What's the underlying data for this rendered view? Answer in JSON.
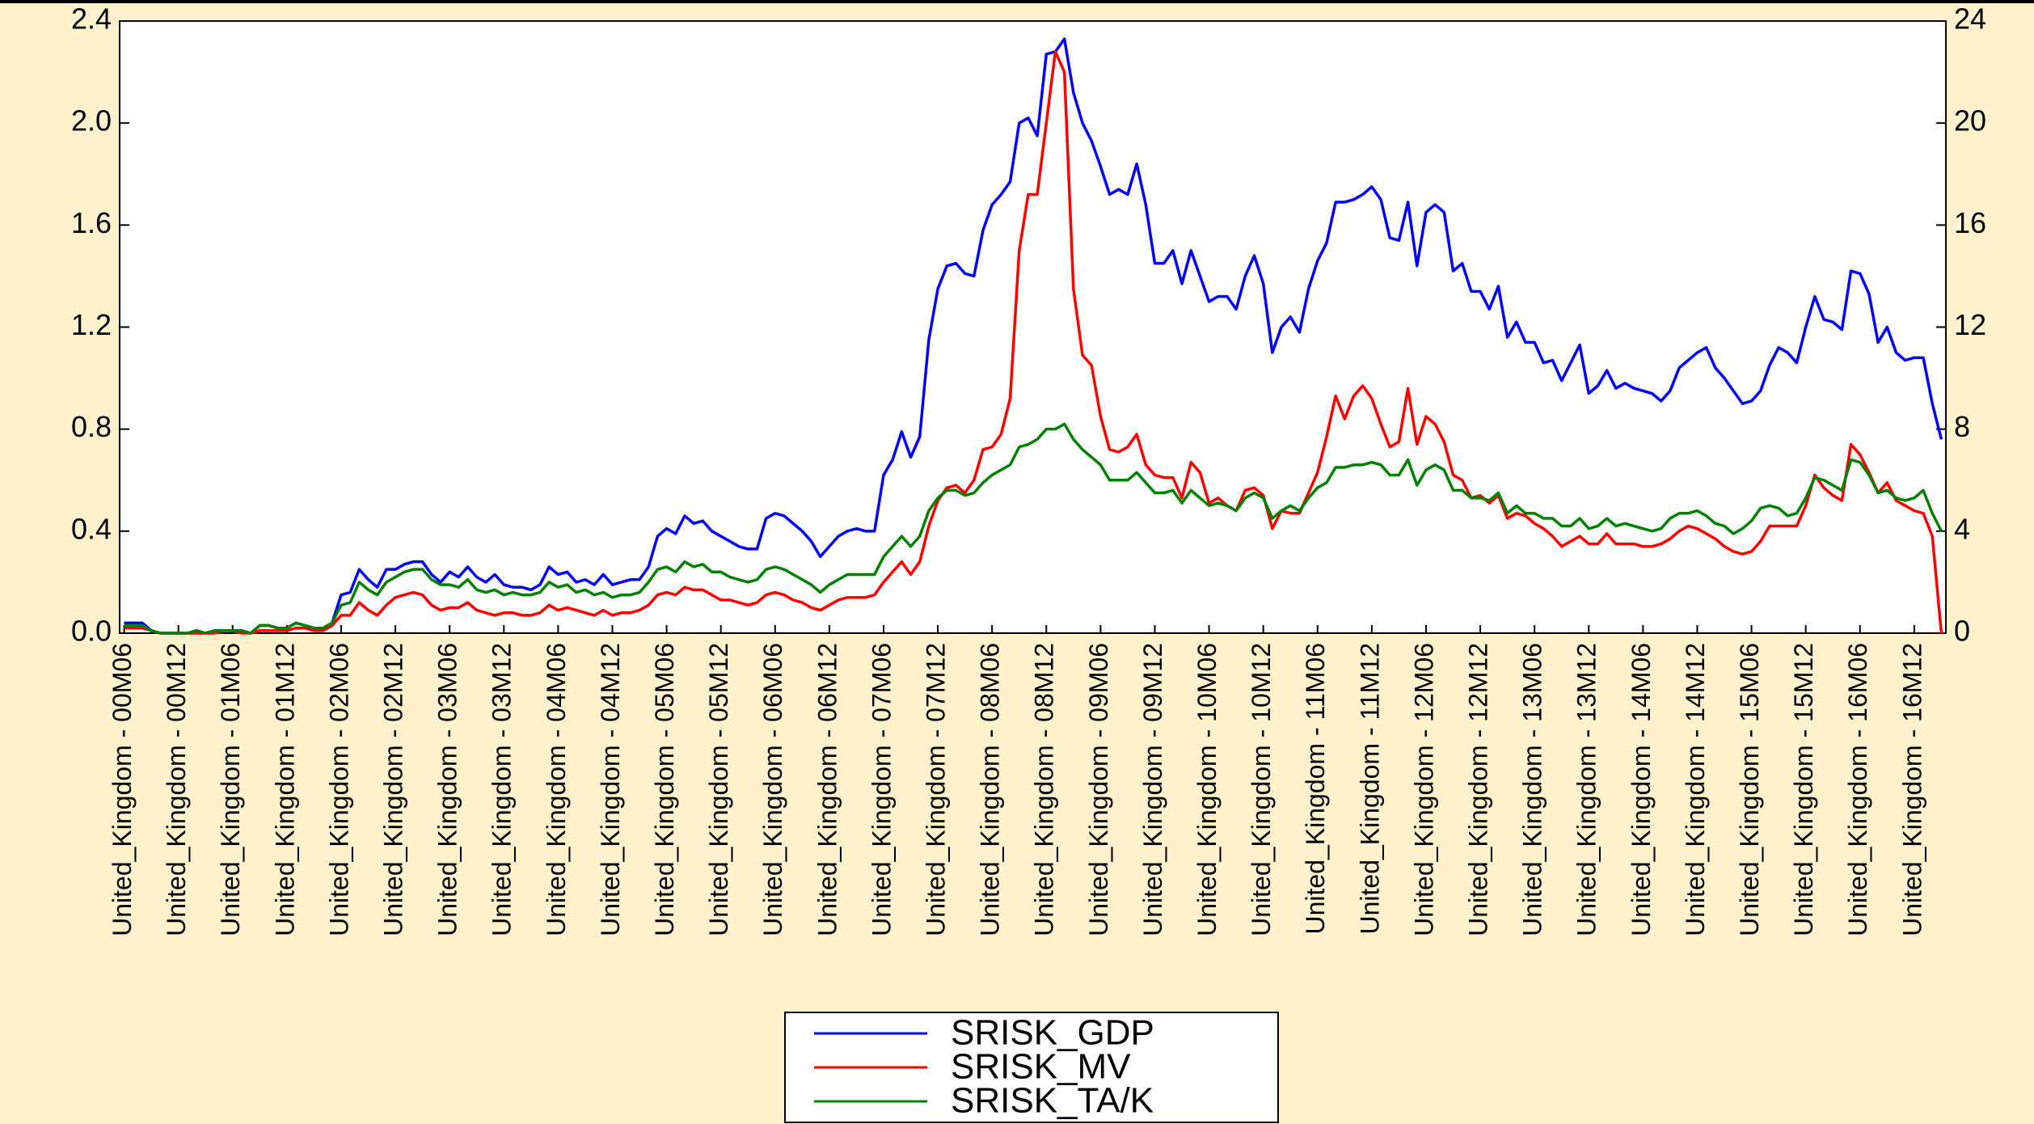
{
  "chart_data": {
    "type": "line",
    "categories": [
      "United_Kingdom - 00M06",
      null,
      null,
      null,
      null,
      null,
      "United_Kingdom - 00M12",
      null,
      null,
      null,
      null,
      null,
      "United_Kingdom - 01M06",
      null,
      null,
      null,
      null,
      null,
      "United_Kingdom - 01M12",
      null,
      null,
      null,
      null,
      null,
      "United_Kingdom - 02M06",
      null,
      null,
      null,
      null,
      null,
      "United_Kingdom - 02M12",
      null,
      null,
      null,
      null,
      null,
      "United_Kingdom - 03M06",
      null,
      null,
      null,
      null,
      null,
      "United_Kingdom - 03M12",
      null,
      null,
      null,
      null,
      null,
      "United_Kingdom - 04M06",
      null,
      null,
      null,
      null,
      null,
      "United_Kingdom - 04M12",
      null,
      null,
      null,
      null,
      null,
      "United_Kingdom - 05M06",
      null,
      null,
      null,
      null,
      null,
      "United_Kingdom - 05M12",
      null,
      null,
      null,
      null,
      null,
      "United_Kingdom - 06M06",
      null,
      null,
      null,
      null,
      null,
      "United_Kingdom - 06M12",
      null,
      null,
      null,
      null,
      null,
      "United_Kingdom - 07M06",
      null,
      null,
      null,
      null,
      null,
      "United_Kingdom - 07M12",
      null,
      null,
      null,
      null,
      null,
      "United_Kingdom - 08M06",
      null,
      null,
      null,
      null,
      null,
      "United_Kingdom - 08M12",
      null,
      null,
      null,
      null,
      null,
      "United_Kingdom - 09M06",
      null,
      null,
      null,
      null,
      null,
      "United_Kingdom - 09M12",
      null,
      null,
      null,
      null,
      null,
      "United_Kingdom - 10M06",
      null,
      null,
      null,
      null,
      null,
      "United_Kingdom - 10M12",
      null,
      null,
      null,
      null,
      null,
      "United_Kingdom - 11M06",
      null,
      null,
      null,
      null,
      null,
      "United_Kingdom - 11M12",
      null,
      null,
      null,
      null,
      null,
      "United_Kingdom - 12M06",
      null,
      null,
      null,
      null,
      null,
      "United_Kingdom - 12M12",
      null,
      null,
      null,
      null,
      null,
      "United_Kingdom - 13M06",
      null,
      null,
      null,
      null,
      null,
      "United_Kingdom - 13M12",
      null,
      null,
      null,
      null,
      null,
      "United_Kingdom - 14M06",
      null,
      null,
      null,
      null,
      null,
      "United_Kingdom - 14M12",
      null,
      null,
      null,
      null,
      null,
      "United_Kingdom - 15M06",
      null,
      null,
      null,
      null,
      null,
      "United_Kingdom - 15M12",
      null,
      null,
      null,
      null,
      null,
      "United_Kingdom - 16M06",
      null,
      null,
      null,
      null,
      null,
      "United_Kingdom - 16M12",
      null,
      null,
      null
    ],
    "series": [
      {
        "name": "SRISK_GDP",
        "color": "#0000ff",
        "values": [
          0.04,
          0.04,
          0.04,
          0.01,
          0,
          0,
          0,
          0,
          0.01,
          0,
          0.01,
          0.01,
          0.01,
          0.01,
          0,
          0.03,
          0.03,
          0.02,
          0.02,
          0.04,
          0.03,
          0.02,
          0.02,
          0.04,
          0.15,
          0.16,
          0.25,
          0.21,
          0.18,
          0.25,
          0.25,
          0.27,
          0.28,
          0.28,
          0.23,
          0.2,
          0.24,
          0.22,
          0.26,
          0.22,
          0.2,
          0.23,
          0.19,
          0.18,
          0.18,
          0.17,
          0.19,
          0.26,
          0.23,
          0.24,
          0.2,
          0.21,
          0.19,
          0.23,
          0.19,
          0.2,
          0.21,
          0.21,
          0.26,
          0.38,
          0.41,
          0.39,
          0.46,
          0.43,
          0.44,
          0.4,
          0.38,
          0.36,
          0.34,
          0.33,
          0.33,
          0.45,
          0.47,
          0.46,
          0.43,
          0.4,
          0.36,
          0.3,
          0.34,
          0.38,
          0.4,
          0.41,
          0.4,
          0.4,
          0.62,
          0.68,
          0.79,
          0.69,
          0.77,
          1.15,
          1.35,
          1.44,
          1.45,
          1.41,
          1.4,
          1.58,
          1.68,
          1.72,
          1.77,
          2.0,
          2.02,
          1.95,
          2.27,
          2.28,
          2.33,
          2.12,
          2.0,
          1.93,
          1.83,
          1.72,
          1.74,
          1.72,
          1.84,
          1.68,
          1.45,
          1.45,
          1.5,
          1.37,
          1.5,
          1.4,
          1.3,
          1.32,
          1.32,
          1.27,
          1.4,
          1.48,
          1.37,
          1.1,
          1.2,
          1.24,
          1.18,
          1.35,
          1.46,
          1.53,
          1.69,
          1.69,
          1.7,
          1.72,
          1.75,
          1.7,
          1.55,
          1.54,
          1.69,
          1.44,
          1.65,
          1.68,
          1.65,
          1.42,
          1.45,
          1.34,
          1.34,
          1.27,
          1.36,
          1.16,
          1.22,
          1.14,
          1.14,
          1.06,
          1.07,
          0.99,
          1.06,
          1.13,
          0.94,
          0.97,
          1.03,
          0.96,
          0.98,
          0.96,
          0.95,
          0.94,
          0.91,
          0.95,
          1.04,
          1.07,
          1.1,
          1.12,
          1.04,
          1.0,
          0.95,
          0.9,
          0.91,
          0.95,
          1.05,
          1.12,
          1.1,
          1.06,
          1.2,
          1.32,
          1.23,
          1.22,
          1.19,
          1.42,
          1.41,
          1.33,
          1.14,
          1.2,
          1.1,
          1.07,
          1.08,
          1.08,
          0.9,
          0.76
        ]
      },
      {
        "name": "SRISK_MV",
        "color": "#ff0000",
        "values": [
          0.02,
          0.02,
          0.02,
          0.01,
          0,
          0,
          0,
          0,
          0,
          0,
          0,
          0.01,
          0.01,
          0,
          0,
          0.01,
          0.01,
          0.01,
          0.01,
          0.02,
          0.02,
          0.01,
          0.01,
          0.03,
          0.07,
          0.07,
          0.12,
          0.09,
          0.07,
          0.11,
          0.14,
          0.15,
          0.16,
          0.15,
          0.11,
          0.09,
          0.1,
          0.1,
          0.12,
          0.09,
          0.08,
          0.07,
          0.08,
          0.08,
          0.07,
          0.07,
          0.08,
          0.11,
          0.09,
          0.1,
          0.09,
          0.08,
          0.07,
          0.09,
          0.07,
          0.08,
          0.08,
          0.09,
          0.11,
          0.15,
          0.16,
          0.15,
          0.18,
          0.17,
          0.17,
          0.15,
          0.13,
          0.13,
          0.12,
          0.11,
          0.12,
          0.15,
          0.16,
          0.15,
          0.13,
          0.12,
          0.1,
          0.09,
          0.11,
          0.13,
          0.14,
          0.14,
          0.14,
          0.15,
          0.2,
          0.24,
          0.28,
          0.23,
          0.28,
          0.42,
          0.52,
          0.57,
          0.58,
          0.55,
          0.6,
          0.72,
          0.73,
          0.78,
          0.92,
          1.5,
          1.72,
          1.72,
          2.0,
          2.28,
          2.2,
          1.35,
          1.09,
          1.05,
          0.85,
          0.72,
          0.71,
          0.73,
          0.78,
          0.66,
          0.62,
          0.61,
          0.61,
          0.53,
          0.67,
          0.63,
          0.51,
          0.53,
          0.5,
          0.48,
          0.56,
          0.57,
          0.54,
          0.41,
          0.48,
          0.47,
          0.47,
          0.55,
          0.63,
          0.77,
          0.93,
          0.84,
          0.93,
          0.97,
          0.92,
          0.82,
          0.73,
          0.75,
          0.96,
          0.74,
          0.85,
          0.82,
          0.75,
          0.62,
          0.6,
          0.53,
          0.54,
          0.51,
          0.54,
          0.45,
          0.47,
          0.46,
          0.43,
          0.41,
          0.38,
          0.34,
          0.36,
          0.38,
          0.35,
          0.35,
          0.39,
          0.35,
          0.35,
          0.35,
          0.34,
          0.34,
          0.35,
          0.37,
          0.4,
          0.42,
          0.41,
          0.39,
          0.37,
          0.34,
          0.32,
          0.31,
          0.32,
          0.36,
          0.42,
          0.42,
          0.42,
          0.42,
          0.5,
          0.62,
          0.57,
          0.54,
          0.52,
          0.74,
          0.7,
          0.63,
          0.55,
          0.59,
          0.52,
          0.5,
          0.48,
          0.47,
          0.38,
          0
        ]
      },
      {
        "name": "SRISK_TA/K",
        "color": "#008000",
        "values": [
          0.03,
          0.03,
          0.03,
          0.01,
          0,
          0,
          0,
          0,
          0.01,
          0,
          0.01,
          0.01,
          0.01,
          0.01,
          0,
          0.03,
          0.03,
          0.02,
          0.02,
          0.04,
          0.03,
          0.02,
          0.02,
          0.04,
          0.11,
          0.12,
          0.2,
          0.17,
          0.15,
          0.2,
          0.22,
          0.24,
          0.25,
          0.25,
          0.21,
          0.19,
          0.19,
          0.18,
          0.21,
          0.17,
          0.16,
          0.17,
          0.15,
          0.16,
          0.15,
          0.15,
          0.16,
          0.2,
          0.18,
          0.19,
          0.16,
          0.17,
          0.15,
          0.16,
          0.14,
          0.15,
          0.15,
          0.16,
          0.2,
          0.25,
          0.26,
          0.24,
          0.28,
          0.26,
          0.27,
          0.24,
          0.24,
          0.22,
          0.21,
          0.2,
          0.21,
          0.25,
          0.26,
          0.25,
          0.23,
          0.21,
          0.19,
          0.16,
          0.19,
          0.21,
          0.23,
          0.23,
          0.23,
          0.23,
          0.3,
          0.34,
          0.38,
          0.34,
          0.38,
          0.48,
          0.53,
          0.56,
          0.56,
          0.54,
          0.55,
          0.59,
          0.62,
          0.64,
          0.66,
          0.73,
          0.74,
          0.76,
          0.8,
          0.8,
          0.82,
          0.76,
          0.72,
          0.69,
          0.66,
          0.6,
          0.6,
          0.6,
          0.63,
          0.59,
          0.55,
          0.55,
          0.56,
          0.51,
          0.56,
          0.53,
          0.5,
          0.51,
          0.5,
          0.48,
          0.53,
          0.55,
          0.53,
          0.45,
          0.48,
          0.5,
          0.48,
          0.53,
          0.57,
          0.59,
          0.65,
          0.65,
          0.66,
          0.66,
          0.67,
          0.66,
          0.62,
          0.62,
          0.68,
          0.58,
          0.64,
          0.66,
          0.64,
          0.56,
          0.56,
          0.53,
          0.53,
          0.52,
          0.55,
          0.47,
          0.5,
          0.47,
          0.47,
          0.45,
          0.45,
          0.42,
          0.42,
          0.45,
          0.41,
          0.42,
          0.45,
          0.42,
          0.43,
          0.42,
          0.41,
          0.4,
          0.41,
          0.45,
          0.47,
          0.47,
          0.48,
          0.46,
          0.43,
          0.42,
          0.39,
          0.41,
          0.44,
          0.49,
          0.5,
          0.49,
          0.46,
          0.47,
          0.53,
          0.61,
          0.6,
          0.58,
          0.56,
          0.68,
          0.67,
          0.62,
          0.55,
          0.56,
          0.53,
          0.52,
          0.53,
          0.56,
          0.47,
          0.4
        ]
      }
    ],
    "ylim": [
      0,
      2.4
    ],
    "yticks": [
      {
        "value": 0,
        "label": "0.0"
      },
      {
        "value": 0.4,
        "label": "0.4"
      },
      {
        "value": 0.8,
        "label": "0.8"
      },
      {
        "value": 1.2,
        "label": "1.2"
      },
      {
        "value": 1.6,
        "label": "1.6"
      },
      {
        "value": 2,
        "label": "2.0"
      },
      {
        "value": 2.4,
        "label": "2.4"
      }
    ],
    "y2lim": [
      0,
      24
    ],
    "y2ticks": [
      0,
      4,
      8,
      12,
      16,
      20,
      24
    ],
    "grid": false
  }
}
